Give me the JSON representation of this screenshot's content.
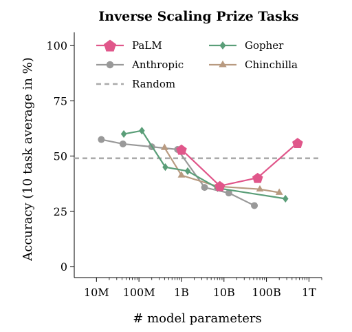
{
  "chart_data": {
    "type": "line",
    "title": "Inverse Scaling Prize Tasks",
    "xlabel": "# model parameters",
    "ylabel": "Accuracy (10 task average in %)",
    "x_scale": "log",
    "xlim": [
      3000000,
      2000000000000
    ],
    "ylim": [
      -5,
      106
    ],
    "x_ticks": [
      {
        "value": 10000000,
        "label": "10M"
      },
      {
        "value": 100000000,
        "label": "100M"
      },
      {
        "value": 1000000000,
        "label": "1B"
      },
      {
        "value": 10000000000,
        "label": "10B"
      },
      {
        "value": 100000000000,
        "label": "100B"
      },
      {
        "value": 1000000000000,
        "label": "1T"
      }
    ],
    "y_ticks": [
      {
        "value": 0,
        "label": "0"
      },
      {
        "value": 25,
        "label": "25"
      },
      {
        "value": 50,
        "label": "50"
      },
      {
        "value": 75,
        "label": "75"
      },
      {
        "value": 100,
        "label": "100"
      }
    ],
    "grid": false,
    "legend_position": "top",
    "series": [
      {
        "name": "PaLM",
        "color": "#e0568a",
        "marker": "pentagon",
        "x": [
          1000000000,
          8000000000,
          62000000000,
          540000000000
        ],
        "y": [
          53,
          36.5,
          40.2,
          56
        ]
      },
      {
        "name": "Anthropic",
        "color": "#999999",
        "marker": "circle",
        "x": [
          13000000,
          42000000,
          200000000,
          810000000,
          3500000000,
          13000000000,
          52000000000
        ],
        "y": [
          57.5,
          55.5,
          54.2,
          53,
          35.8,
          33.3,
          27.6
        ]
      },
      {
        "name": "Gopher",
        "color": "#5a9e78",
        "marker": "diamond",
        "x": [
          44000000,
          117000000,
          417000000,
          1400000000,
          7100000000,
          280000000000
        ],
        "y": [
          60,
          61.5,
          45,
          43.2,
          35.5,
          30.7
        ]
      },
      {
        "name": "Chinchilla",
        "color": "#b89a80",
        "marker": "triangle",
        "x": [
          400000000,
          1000000000,
          7000000000,
          70000000000,
          200000000000
        ],
        "y": [
          53.8,
          41.3,
          36.3,
          35,
          33.5
        ]
      }
    ],
    "reference_lines": [
      {
        "name": "Random",
        "y": 49,
        "color": "#aaaaaa",
        "style": "dashed"
      }
    ]
  }
}
